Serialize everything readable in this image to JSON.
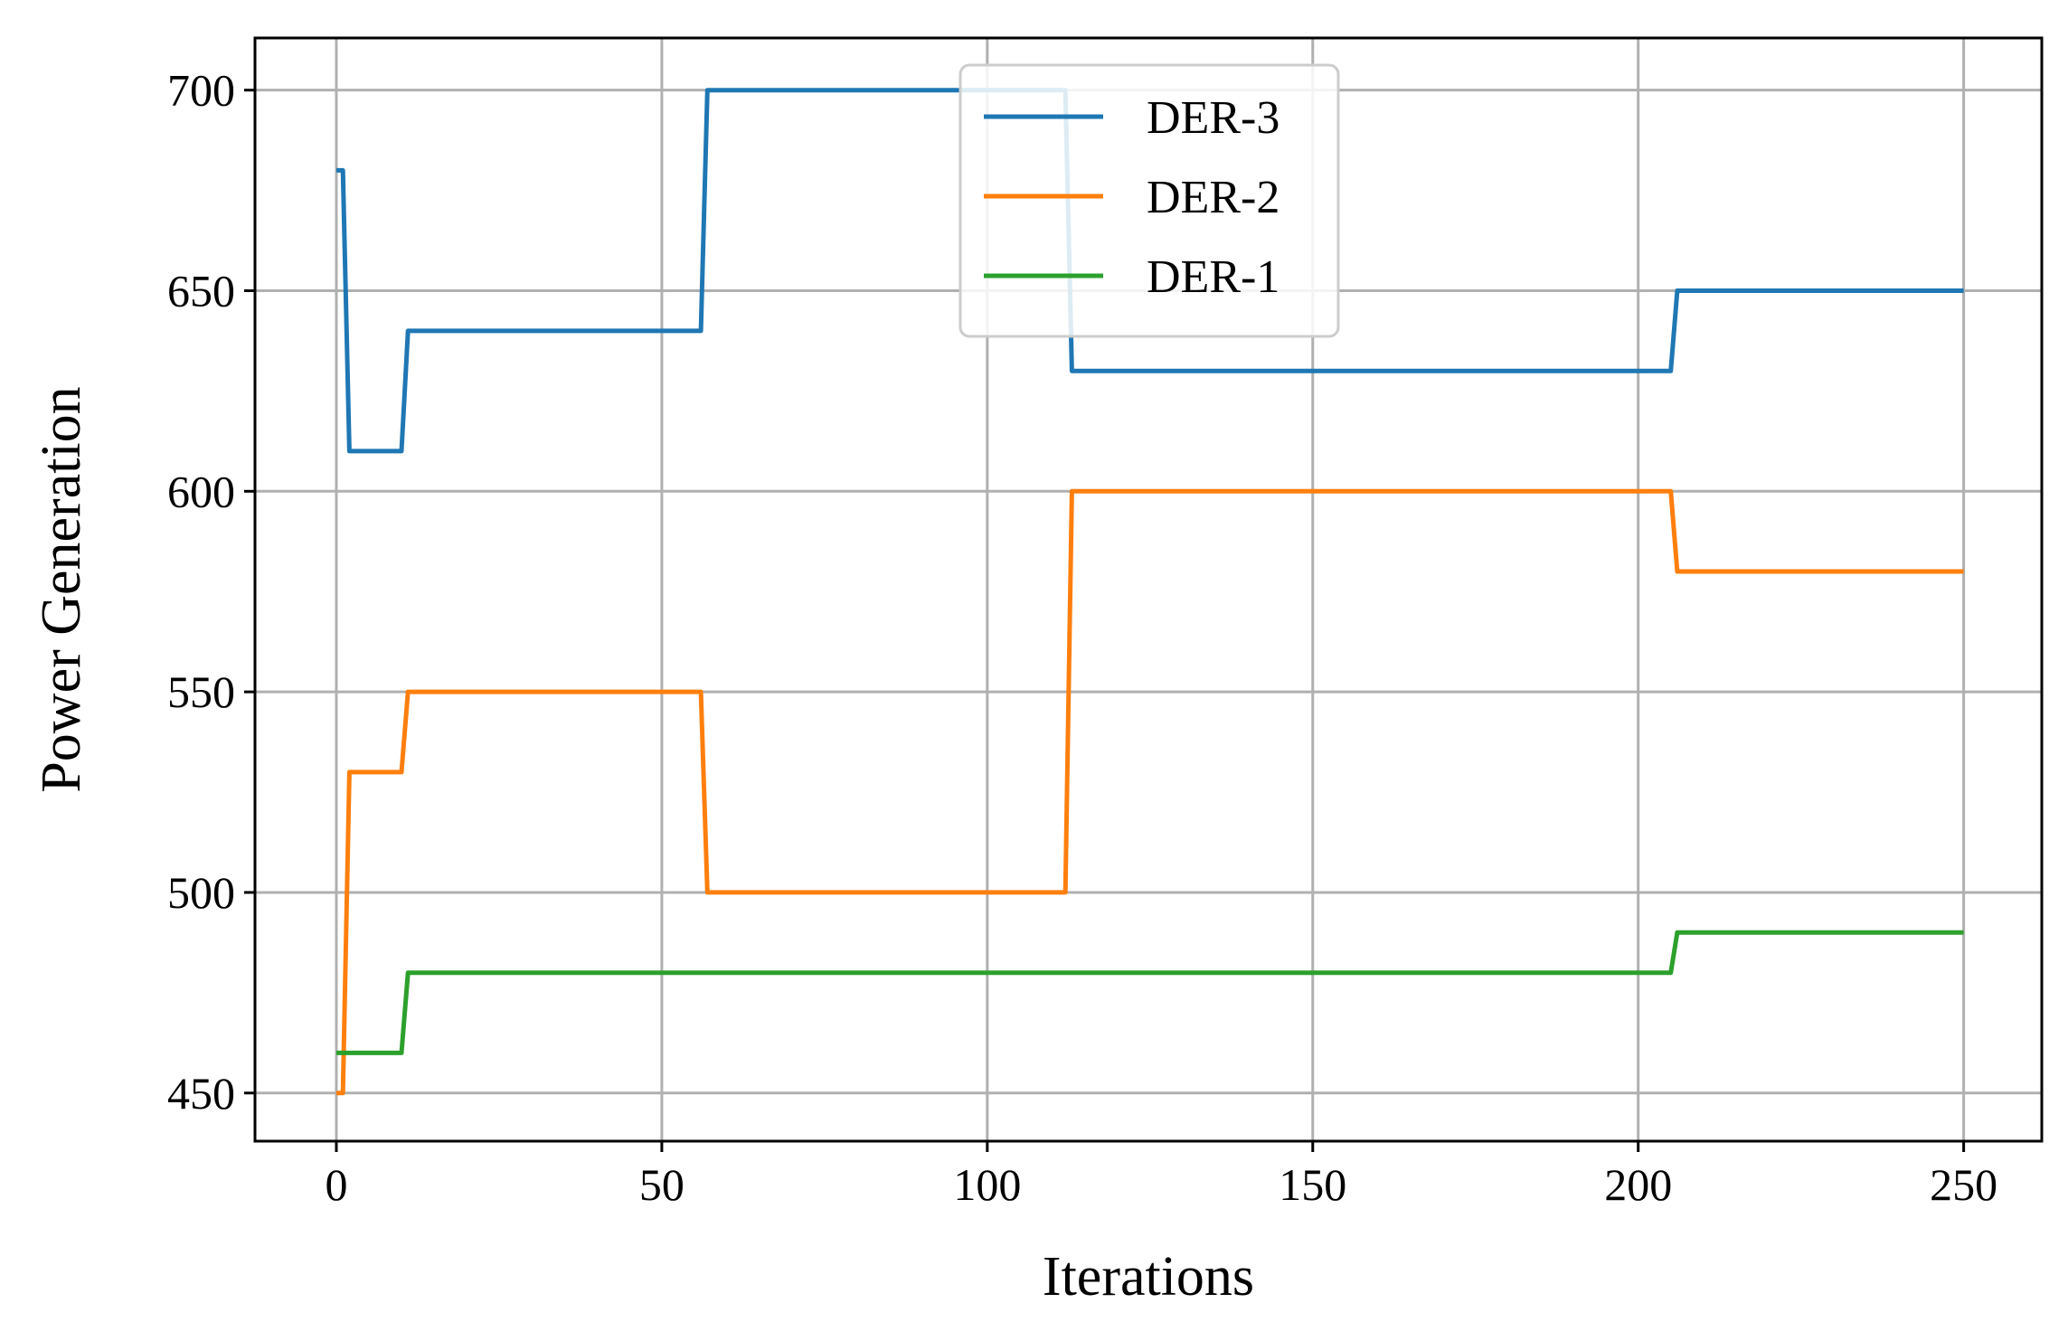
{
  "chart_data": {
    "type": "line",
    "title": "",
    "xlabel": "Iterations",
    "ylabel": "Power Generation",
    "xlim": [
      -12.5,
      262
    ],
    "ylim": [
      438,
      713
    ],
    "xticks": [
      0,
      50,
      100,
      150,
      200,
      250
    ],
    "yticks": [
      450,
      500,
      550,
      600,
      650,
      700
    ],
    "xtick_labels": [
      "0",
      "50",
      "100",
      "150",
      "200",
      "250"
    ],
    "ytick_labels": [
      "450",
      "500",
      "550",
      "600",
      "650",
      "700"
    ],
    "grid": true,
    "legend_position": "upper-center",
    "series": [
      {
        "name": "DER-3",
        "color": "#1f77b4",
        "x": [
          0,
          1,
          2,
          10,
          11,
          56,
          57,
          112,
          113,
          205,
          206,
          250
        ],
        "y": [
          680,
          680,
          610,
          610,
          640,
          640,
          700,
          700,
          630,
          630,
          650,
          650
        ]
      },
      {
        "name": "DER-2",
        "color": "#ff7f0e",
        "x": [
          0,
          1,
          2,
          10,
          11,
          56,
          57,
          112,
          113,
          205,
          206,
          250
        ],
        "y": [
          450,
          450,
          530,
          530,
          550,
          550,
          500,
          500,
          600,
          600,
          580,
          580
        ]
      },
      {
        "name": "DER-1",
        "color": "#2ca02c",
        "x": [
          0,
          10,
          11,
          205,
          206,
          250
        ],
        "y": [
          460,
          460,
          480,
          480,
          490,
          490
        ]
      }
    ]
  }
}
